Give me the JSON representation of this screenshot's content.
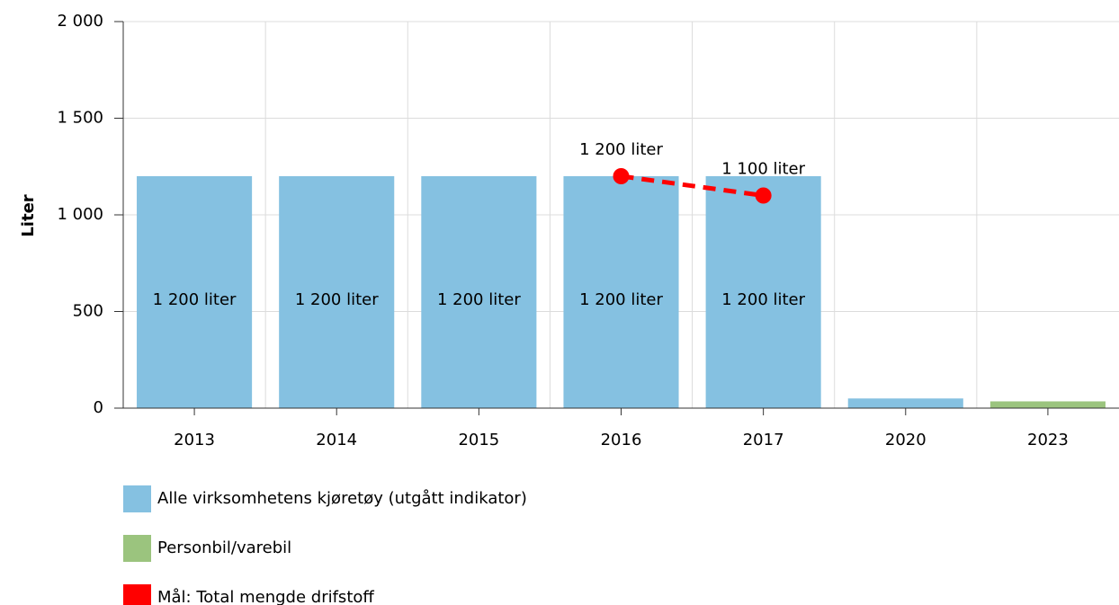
{
  "chart_data": {
    "type": "bar",
    "y_label": "Liter",
    "categories": [
      "2013",
      "2014",
      "2015",
      "2016",
      "2017",
      "2020",
      "2023"
    ],
    "series": [
      {
        "name": "Alle virksomhetens kjøretøy (utgått indikator)",
        "type": "bar",
        "color": "#85c1e1",
        "values": [
          1200,
          1200,
          1200,
          1200,
          1200,
          50,
          null
        ],
        "value_labels": [
          "1 200 liter",
          "1 200 liter",
          "1 200 liter",
          "1 200 liter",
          "1 200 liter",
          null,
          null
        ]
      },
      {
        "name": "Personbil/varebil",
        "type": "bar",
        "color": "#9bc47e",
        "values": [
          null,
          null,
          null,
          null,
          null,
          null,
          35
        ]
      },
      {
        "name": "Mål: Total mengde drifstoff",
        "type": "line",
        "color": "#ff0000",
        "dashed": true,
        "values": [
          null,
          null,
          null,
          1200,
          1100,
          null,
          null
        ],
        "value_labels": [
          null,
          null,
          null,
          "1 200 liter",
          "1 100 liter",
          null,
          null
        ]
      }
    ],
    "ylim": [
      0,
      2000
    ],
    "yticks": [
      0,
      500,
      {
        "value": 1000,
        "label": "1 000"
      },
      {
        "value": 1500,
        "label": "1 500"
      },
      {
        "value": 2000,
        "label": "2 000"
      }
    ],
    "grid": true,
    "legend": "bottom-left"
  }
}
